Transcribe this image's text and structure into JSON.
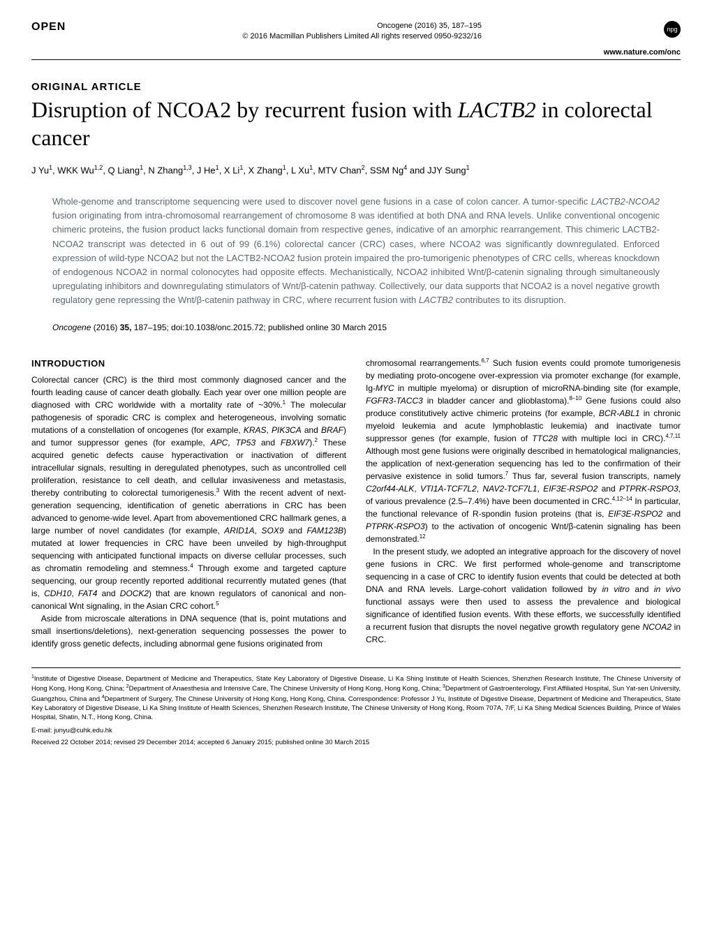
{
  "header": {
    "open_label": "OPEN",
    "journal_line": "Oncogene (2016) 35, 187–195",
    "copyright_line": "© 2016 Macmillan Publishers Limited   All rights reserved 0950-9232/16",
    "npg_badge": "npg",
    "website": "www.nature.com/onc"
  },
  "article": {
    "type": "ORIGINAL ARTICLE",
    "title_prefix": "Disruption of NCOA2 by recurrent fusion with ",
    "title_italic": "LACTB2",
    "title_suffix": " in colorectal cancer",
    "authors": "J Yu<sup>1</sup>, WKK Wu<sup>1,2</sup>, Q Liang<sup>1</sup>, N Zhang<sup>1,3</sup>, J He<sup>1</sup>, X Li<sup>1</sup>, X Zhang<sup>1</sup>, L Xu<sup>1</sup>, MTV Chan<sup>2</sup>, SSM Ng<sup>4</sup> and JJY Sung<sup>1</sup>"
  },
  "abstract": {
    "text": "Whole-genome and transcriptome sequencing were used to discover novel gene fusions in a case of colon cancer. A tumor-specific <em>LACTB2-NCOA2</em> fusion originating from intra-chromosomal rearrangement of chromosome 8 was identified at both DNA and RNA levels. Unlike conventional oncogenic chimeric proteins, the fusion product lacks functional domain from respective genes, indicative of an amorphic rearrangement. This chimeric LACTB2-NCOA2 transcript was detected in 6 out of 99 (6.1%) colorectal cancer (CRC) cases, where NCOA2 was significantly downregulated. Enforced expression of wild-type NCOA2 but not the LACTB2-NCOA2 fusion protein impaired the pro-tumorigenic phenotypes of CRC cells, whereas knockdown of endogenous NCOA2 in normal colonocytes had opposite effects. Mechanistically, NCOA2 inhibited Wnt/β-catenin signaling through simultaneously upregulating inhibitors and downregulating stimulators of Wnt/β-catenin pathway. Collectively, our data supports that NCOA2 is a novel negative growth regulatory gene repressing the Wnt/β-catenin pathway in CRC, where recurrent fusion with <em>LACTB2</em> contributes to its disruption."
  },
  "citation": {
    "text": "<em>Oncogene</em> (2016) <b>35,</b> 187–195; doi:10.1038/onc.2015.72; published online 30 March 2015"
  },
  "body": {
    "intro_heading": "INTRODUCTION",
    "left_column": "Colorectal cancer (CRC) is the third most commonly diagnosed cancer and the fourth leading cause of cancer death globally. Each year over one million people are diagnosed with CRC worldwide with a mortality rate of ~30%.<sup>1</sup> The molecular pathogenesis of sporadic CRC is complex and heterogeneous, involving somatic mutations of a constellation of oncogenes (for example, <em>KRAS</em>, <em>PIK3CA</em> and <em>BRAF</em>) and tumor suppressor genes (for example, <em>APC</em>, <em>TP53</em> and <em>FBXW7</em>).<sup>2</sup> These acquired genetic defects cause hyperactivation or inactivation of different intracellular signals, resulting in deregulated phenotypes, such as uncontrolled cell proliferation, resistance to cell death, and cellular invasiveness and metastasis, thereby contributing to colorectal tumorigenesis.<sup>3</sup> With the recent advent of next-generation sequencing, identification of genetic aberrations in CRC has been advanced to genome-wide level. Apart from abovementioned CRC hallmark genes, a large number of novel candidates (for example, <em>ARID1A</em>, <em>SOX9</em> and <em>FAM123B</em>) mutated at lower frequencies in CRC have been unveiled by high-throughput sequencing with anticipated functional impacts on diverse cellular processes, such as chromatin remodeling and stemness.<sup>4</sup> Through exome and targeted capture sequencing, our group recently reported additional recurrently mutated genes (that is, <em>CDH10</em>, <em>FAT4</em> and <em>DOCK2</em>) that are known regulators of canonical and non-canonical Wnt signaling, in the Asian CRC cohort.<sup>5</sup><br>&nbsp;&nbsp;&nbsp;Aside from microscale alterations in DNA sequence (that is, point mutations and small insertions/deletions), next-generation sequencing possesses the power to identify gross genetic defects, including abnormal gene fusions originated from",
    "right_column": "chromosomal rearrangements.<sup>6,7</sup> Such fusion events could promote tumorigenesis by mediating proto-oncogene over-expression via promoter exchange (for example, Ig-<em>MYC</em> in multiple myeloma) or disruption of microRNA-binding site (for example, <em>FGFR3-TACC3</em> in bladder cancer and glioblastoma).<sup>8–10</sup> Gene fusions could also produce constitutively active chimeric proteins (for example, <em>BCR-ABL1</em> in chronic myeloid leukemia and acute lymphoblastic leukemia) and inactivate tumor suppressor genes (for example, fusion of <em>TTC28</em> with multiple loci in CRC).<sup>4,7,11</sup> Although most gene fusions were originally described in hematological malignancies, the application of next-generation sequencing has led to the confirmation of their pervasive existence in solid tumors.<sup>7</sup> Thus far, several fusion transcripts, namely <em>C2orf44-ALK</em>, <em>VTI1A-TCF7L2</em>, <em>NAV2-TCF7L1</em>, <em>EIF3E-RSPO2</em> and <em>PTPRK-RSPO3</em>, of various prevalence (2.5–7.4%) have been documented in CRC.<sup>4,12–14</sup> In particular, the functional relevance of R-spondin fusion proteins (that is, <em>EIF3E-RSPO2</em> and <em>PTPRK-RSPO3</em>) to the activation of oncogenic Wnt/β-catenin signaling has been demonstrated.<sup>12</sup><br>&nbsp;&nbsp;&nbsp;In the present study, we adopted an integrative approach for the discovery of novel gene fusions in CRC. We first performed whole-genome and transcriptome sequencing in a case of CRC to identify fusion events that could be detected at both DNA and RNA levels. Large-cohort validation followed by <em>in vitro</em> and <em>in vivo</em> functional assays were then used to assess the prevalence and biological significance of identified fusion events. With these efforts, we successfully identified a recurrent fusion that disrupts the novel negative growth regulatory gene <em>NCOA2</em> in CRC."
  },
  "footer": {
    "affiliations": "<sup>1</sup>Institute of Digestive Disease, Department of Medicine and Therapeutics, State Key Laboratory of Digestive Disease, Li Ka Shing Institute of Health Sciences, Shenzhen Research Institute, The Chinese University of Hong Kong, Hong Kong, China; <sup>2</sup>Department of Anaesthesia and Intensive Care, The Chinese University of Hong Kong, Hong Kong, China; <sup>3</sup>Department of Gastroenterology, First Affiliated Hospital, Sun Yat-sen University, Guangzhou, China and <sup>4</sup>Department of Surgery, The Chinese University of Hong Kong, Hong Kong, China. Correspondence: Professor J Yu, Institute of Digestive Disease, Department of Medicine and Therapeutics, State Key Laboratory of Digestive Disease, Li Ka Shing Institute of Health Sciences, Shenzhen Research Institute, The Chinese University of Hong Kong, Room 707A, 7/F, Li Ka Shing Medical Sciences Building, Prince of Wales Hospital, Shatin, N.T., Hong Kong, China.",
    "email": "E-mail: junyu@cuhk.edu.hk",
    "dates": "Received 22 October 2014; revised 29 December 2014; accepted 6 January 2015; published online 30 March 2015"
  }
}
